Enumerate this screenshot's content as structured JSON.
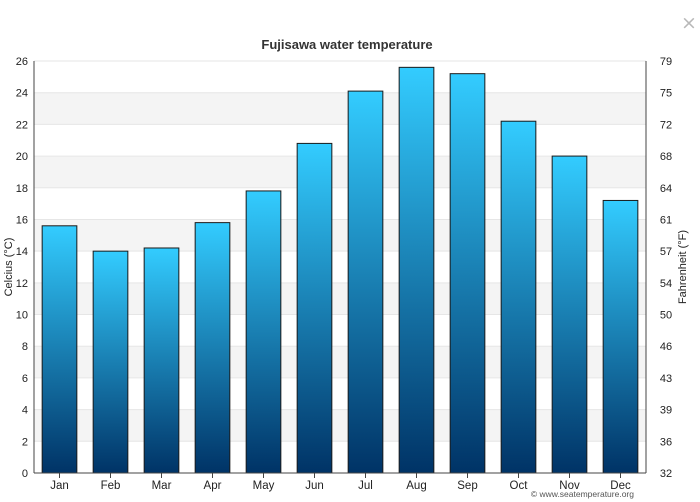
{
  "ui": {
    "close_label": "×",
    "close_icon": "close-icon"
  },
  "chart_data": {
    "type": "bar",
    "title": "Fujisawa water temperature",
    "categories": [
      "Jan",
      "Feb",
      "Mar",
      "Apr",
      "May",
      "Jun",
      "Jul",
      "Aug",
      "Sep",
      "Oct",
      "Nov",
      "Dec"
    ],
    "series": [
      {
        "values": [
          15.6,
          14.0,
          14.2,
          15.8,
          17.8,
          20.8,
          24.1,
          25.6,
          25.2,
          22.2,
          20.0,
          17.2
        ]
      }
    ],
    "ylabel": "Celcius (°C)",
    "ylim": [
      0,
      26
    ],
    "yticks": [
      0,
      2,
      4,
      6,
      8,
      10,
      12,
      14,
      16,
      18,
      20,
      22,
      24,
      26
    ],
    "y2label": "Fahrenheit (°F)",
    "y2ticks": [
      "32",
      "36",
      "39",
      "43",
      "46",
      "50",
      "54",
      "57",
      "61",
      "64",
      "68",
      "72",
      "75",
      "79"
    ],
    "grid": true,
    "legend": "none",
    "credit": "© www.seatemperature.org",
    "colors": {
      "bar_top": "#33ccff",
      "bar_bottom": "#003366",
      "bar_outline": "#1a1a1a",
      "band": "#f4f4f4",
      "gridline": "#e6e6e6",
      "axis": "#444444"
    }
  }
}
